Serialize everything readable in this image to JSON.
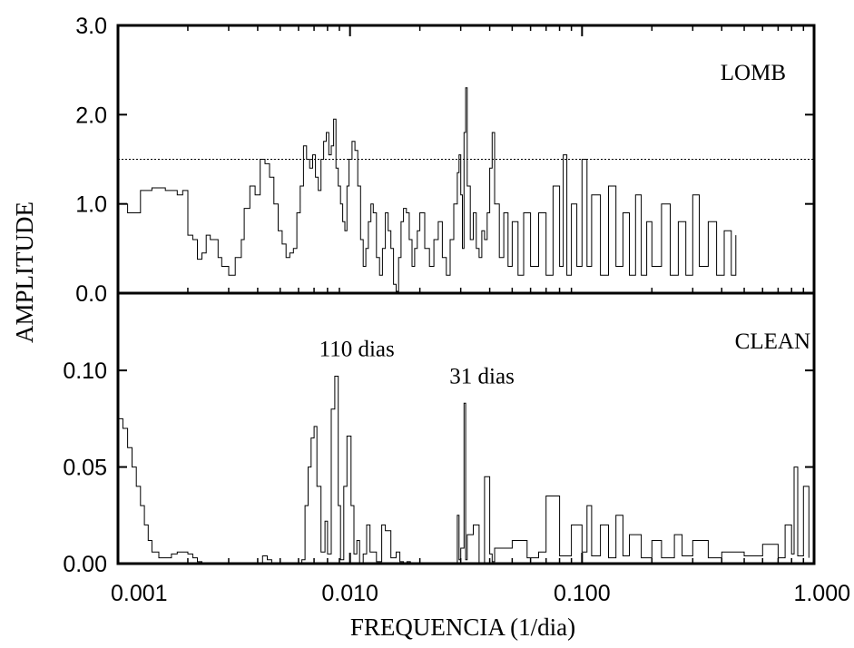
{
  "chart_data": {
    "type": "line",
    "xlabel": "FREQUENCIA (1/dia)",
    "ylabel": "AMPLITUDE",
    "x_scale": "log",
    "xlim": [
      0.001,
      1.0
    ],
    "x_ticks": [
      0.001,
      0.01,
      0.1,
      1.0
    ],
    "x_tick_labels": [
      "0.001",
      "0.010",
      "0.100",
      "1.000"
    ],
    "panels": [
      {
        "label": "LOMB",
        "ylim": [
          0,
          3.0
        ],
        "y_ticks": [
          0.0,
          1.0,
          2.0,
          3.0
        ],
        "y_tick_labels": [
          "0.0",
          "1.0",
          "2.0",
          "3.0"
        ],
        "threshold": 1.5,
        "x": [
          0.001,
          0.0011,
          0.00125,
          0.0014,
          0.0016,
          0.0018,
          0.0019,
          0.002,
          0.0021,
          0.0022,
          0.0023,
          0.0024,
          0.0025,
          0.0027,
          0.0028,
          0.003,
          0.0032,
          0.0034,
          0.0035,
          0.0037,
          0.0039,
          0.0041,
          0.0043,
          0.0045,
          0.0047,
          0.0049,
          0.0051,
          0.0053,
          0.0055,
          0.0057,
          0.0059,
          0.0061,
          0.0063,
          0.0065,
          0.0067,
          0.0069,
          0.0071,
          0.0073,
          0.0075,
          0.0077,
          0.0079,
          0.0081,
          0.0083,
          0.0085,
          0.0087,
          0.0089,
          0.0091,
          0.0093,
          0.0095,
          0.0097,
          0.0099,
          0.0102,
          0.0105,
          0.0108,
          0.0111,
          0.0114,
          0.0117,
          0.012,
          0.0123,
          0.0126,
          0.013,
          0.0134,
          0.0138,
          0.0142,
          0.0146,
          0.015,
          0.0154,
          0.0158,
          0.0162,
          0.0166,
          0.017,
          0.0175,
          0.018,
          0.0185,
          0.019,
          0.0195,
          0.02,
          0.021,
          0.022,
          0.023,
          0.024,
          0.025,
          0.026,
          0.027,
          0.028,
          0.029,
          0.0295,
          0.03,
          0.0305,
          0.031,
          0.0315,
          0.032,
          0.033,
          0.034,
          0.035,
          0.036,
          0.037,
          0.038,
          0.039,
          0.04,
          0.041,
          0.042,
          0.044,
          0.046,
          0.048,
          0.05,
          0.053,
          0.056,
          0.06,
          0.065,
          0.07,
          0.075,
          0.08,
          0.083,
          0.086,
          0.09,
          0.095,
          0.1,
          0.105,
          0.11,
          0.12,
          0.13,
          0.14,
          0.15,
          0.16,
          0.17,
          0.18,
          0.19,
          0.2,
          0.22,
          0.24,
          0.26,
          0.28,
          0.3,
          0.32,
          0.35,
          0.38,
          0.41,
          0.44,
          0.46
        ],
        "y": [
          1.0,
          0.9,
          1.15,
          1.18,
          1.15,
          1.1,
          1.15,
          0.65,
          0.6,
          0.38,
          0.45,
          0.65,
          0.6,
          0.4,
          0.3,
          0.2,
          0.4,
          0.6,
          0.95,
          1.2,
          1.1,
          1.5,
          1.45,
          1.3,
          1.0,
          0.7,
          0.55,
          0.4,
          0.45,
          0.5,
          0.9,
          1.2,
          1.65,
          1.5,
          1.4,
          1.55,
          1.3,
          1.15,
          1.5,
          1.7,
          1.8,
          1.55,
          1.65,
          1.95,
          1.4,
          1.2,
          1.0,
          0.8,
          0.7,
          1.2,
          1.5,
          1.7,
          1.6,
          1.2,
          0.6,
          0.3,
          0.5,
          0.8,
          1.0,
          0.9,
          0.4,
          0.2,
          0.5,
          0.9,
          0.7,
          0.5,
          0.1,
          0.02,
          0.4,
          0.8,
          0.95,
          0.9,
          0.6,
          0.3,
          0.5,
          0.7,
          0.9,
          0.5,
          0.3,
          0.6,
          0.8,
          0.4,
          0.2,
          0.6,
          1.0,
          1.35,
          1.55,
          1.1,
          0.5,
          1.8,
          2.3,
          1.2,
          0.6,
          0.9,
          0.5,
          0.4,
          0.7,
          0.6,
          0.9,
          1.4,
          1.8,
          1.0,
          0.4,
          0.9,
          0.3,
          0.8,
          0.2,
          0.9,
          0.3,
          0.9,
          0.2,
          1.2,
          0.3,
          1.55,
          0.2,
          1.0,
          0.3,
          1.5,
          0.3,
          1.1,
          0.2,
          1.2,
          0.3,
          0.9,
          0.2,
          1.1,
          0.2,
          0.8,
          0.3,
          1.0,
          0.2,
          0.8,
          0.2,
          1.1,
          0.3,
          0.8,
          0.2,
          0.7,
          0.2,
          0.65
        ]
      },
      {
        "label": "CLEAN",
        "ylim": [
          0,
          0.14
        ],
        "y_ticks": [
          0.0,
          0.05,
          0.1
        ],
        "y_tick_labels": [
          "0.00",
          "0.05",
          "0.10"
        ],
        "annotations": [
          {
            "text": "110 dias",
            "x": 0.0091,
            "y": 0.097
          },
          {
            "text": "31 dias",
            "x": 0.0315,
            "y": 0.083
          }
        ],
        "x": [
          0.001,
          0.00105,
          0.0011,
          0.00115,
          0.0012,
          0.00125,
          0.0013,
          0.00135,
          0.0014,
          0.0015,
          0.0016,
          0.0017,
          0.0018,
          0.0019,
          0.002,
          0.0021,
          0.0022,
          0.0023,
          0.0042,
          0.0044,
          0.0046,
          0.0062,
          0.0064,
          0.0066,
          0.0068,
          0.007,
          0.0072,
          0.0075,
          0.0078,
          0.008,
          0.0083,
          0.0086,
          0.0089,
          0.0091,
          0.0094,
          0.0097,
          0.0101,
          0.0104,
          0.0107,
          0.011,
          0.0114,
          0.0118,
          0.0122,
          0.013,
          0.0137,
          0.0142,
          0.015,
          0.0158,
          0.0164,
          0.017,
          0.0176,
          0.0182,
          0.0188,
          0.028,
          0.029,
          0.0295,
          0.03,
          0.031,
          0.0315,
          0.032,
          0.034,
          0.036,
          0.038,
          0.04,
          0.041,
          0.042,
          0.05,
          0.058,
          0.065,
          0.07,
          0.08,
          0.09,
          0.1,
          0.105,
          0.11,
          0.12,
          0.13,
          0.14,
          0.15,
          0.16,
          0.18,
          0.2,
          0.22,
          0.25,
          0.27,
          0.3,
          0.35,
          0.4,
          0.5,
          0.6,
          0.7,
          0.75,
          0.8,
          0.82,
          0.85,
          0.9,
          0.95
        ],
        "y": [
          0.075,
          0.07,
          0.06,
          0.05,
          0.04,
          0.03,
          0.02,
          0.012,
          0.006,
          0.003,
          0.003,
          0.005,
          0.006,
          0.006,
          0.005,
          0.003,
          0.001,
          0.0,
          0.004,
          0.002,
          0.0,
          0.002,
          0.03,
          0.05,
          0.065,
          0.071,
          0.04,
          0.006,
          0.022,
          0.005,
          0.08,
          0.097,
          0.03,
          0.002,
          0.04,
          0.066,
          0.03,
          0.005,
          0.012,
          0.0,
          0.005,
          0.02,
          0.006,
          0.001,
          0.02,
          0.017,
          0.003,
          0.006,
          0.001,
          0.0,
          0.001,
          0.0,
          0.0,
          0.0,
          0.025,
          0.002,
          0.008,
          0.083,
          0.002,
          0.015,
          0.02,
          0.0,
          0.045,
          0.005,
          0.001,
          0.008,
          0.012,
          0.003,
          0.006,
          0.035,
          0.004,
          0.02,
          0.006,
          0.03,
          0.004,
          0.02,
          0.003,
          0.025,
          0.004,
          0.015,
          0.003,
          0.012,
          0.003,
          0.015,
          0.004,
          0.012,
          0.003,
          0.006,
          0.004,
          0.01,
          0.003,
          0.02,
          0.005,
          0.05,
          0.004,
          0.04,
          0.003
        ]
      }
    ]
  }
}
